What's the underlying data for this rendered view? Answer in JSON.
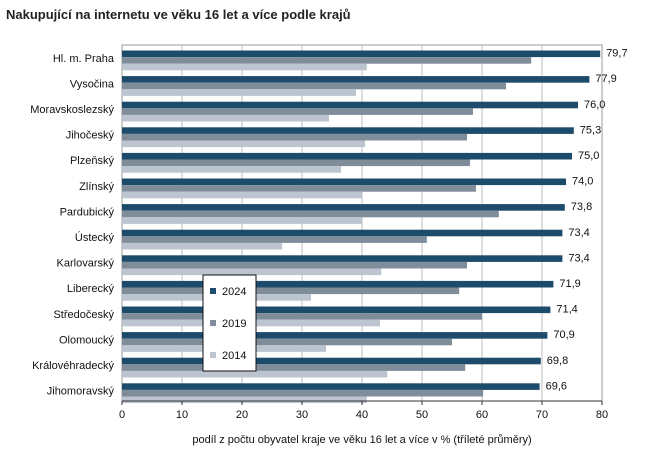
{
  "chart_data": {
    "type": "bar",
    "orientation": "horizontal",
    "title": "Nakupující na internetu ve věku 16 let a více podle krajů",
    "xlabel": "podíl z počtu obyvatel kraje ve věku 16 let a více v % (tříleté průměry)",
    "xlim": [
      0,
      80
    ],
    "xticks": [
      0,
      10,
      20,
      30,
      40,
      50,
      60,
      70,
      80
    ],
    "grid": true,
    "legend_position": "bottom-left inside plot",
    "categories": [
      "Hl. m. Praha",
      "Vysočina",
      "Moravskoslezský",
      "Jihočeský",
      "Plzeňský",
      "Zlínský",
      "Pardubický",
      "Ústecký",
      "Karlovarský",
      "Liberecký",
      "Středočeský",
      "Olomoucký",
      "Královéhradecký",
      "Jihomoravský"
    ],
    "series": [
      {
        "name": "2024",
        "color": "#1c4b6b",
        "values": [
          79.7,
          77.9,
          76.0,
          75.3,
          75.0,
          74.0,
          73.8,
          73.4,
          73.4,
          71.9,
          71.4,
          70.9,
          69.8,
          69.6
        ],
        "labels": [
          "79,7",
          "77,9",
          "76,0",
          "75,3",
          "75,0",
          "74,0",
          "73,8",
          "73,4",
          "73,4",
          "71,9",
          "71,4",
          "70,9",
          "69,8",
          "69,6"
        ]
      },
      {
        "name": "2019",
        "color": "#7f8c9a",
        "values": [
          68.2,
          64.0,
          58.5,
          57.5,
          58.0,
          59.0,
          62.8,
          50.8,
          57.5,
          56.2,
          60.0,
          55.0,
          57.2,
          60.2
        ]
      },
      {
        "name": "2014",
        "color": "#bcc5cf",
        "values": [
          40.8,
          39.0,
          34.5,
          40.5,
          36.5,
          40.0,
          40.0,
          26.7,
          43.2,
          31.5,
          43.0,
          34.0,
          44.2,
          40.8
        ]
      }
    ]
  }
}
